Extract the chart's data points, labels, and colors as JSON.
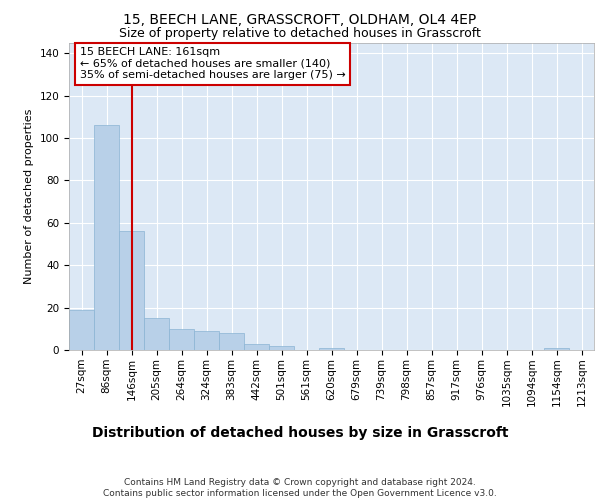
{
  "title1": "15, BEECH LANE, GRASSCROFT, OLDHAM, OL4 4EP",
  "title2": "Size of property relative to detached houses in Grasscroft",
  "xlabel": "Distribution of detached houses by size in Grasscroft",
  "ylabel": "Number of detached properties",
  "bar_labels": [
    "27sqm",
    "86sqm",
    "146sqm",
    "205sqm",
    "264sqm",
    "324sqm",
    "383sqm",
    "442sqm",
    "501sqm",
    "561sqm",
    "620sqm",
    "679sqm",
    "739sqm",
    "798sqm",
    "857sqm",
    "917sqm",
    "976sqm",
    "1035sqm",
    "1094sqm",
    "1154sqm",
    "1213sqm"
  ],
  "bar_values": [
    19,
    106,
    56,
    15,
    10,
    9,
    8,
    3,
    2,
    0,
    1,
    0,
    0,
    0,
    0,
    0,
    0,
    0,
    0,
    1,
    0
  ],
  "bar_color": "#b8d0e8",
  "bar_edge_color": "#8ab4d4",
  "background_color": "#dce8f5",
  "grid_color": "#ffffff",
  "property_line_x": 2.0,
  "property_line_color": "#cc0000",
  "annotation_text": "15 BEECH LANE: 161sqm\n← 65% of detached houses are smaller (140)\n35% of semi-detached houses are larger (75) →",
  "annotation_box_facecolor": "#ffffff",
  "annotation_box_edgecolor": "#cc0000",
  "ylim": [
    0,
    145
  ],
  "yticks": [
    0,
    20,
    40,
    60,
    80,
    100,
    120,
    140
  ],
  "footer_text": "Contains HM Land Registry data © Crown copyright and database right 2024.\nContains public sector information licensed under the Open Government Licence v3.0.",
  "title1_fontsize": 10,
  "title2_fontsize": 9,
  "xlabel_fontsize": 10,
  "ylabel_fontsize": 8,
  "tick_fontsize": 7.5,
  "annotation_fontsize": 8,
  "footer_fontsize": 6.5
}
